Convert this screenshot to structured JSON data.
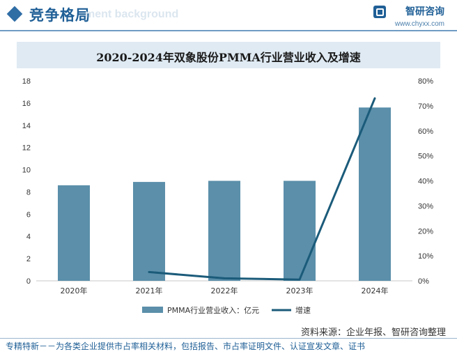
{
  "header": {
    "title": "竞争格局",
    "ghost_text": "ment background"
  },
  "brand": {
    "name": "智研咨询",
    "url": "www.chyxx.com"
  },
  "source": "资料来源：企业年报、智研咨询整理",
  "footer": "专精特新－－为各类企业提供市占率相关材料，包括报告、市占率证明文件、认证宣发文章、证书",
  "colors": {
    "bar": "#5b8faa",
    "line": "#1b5b7a",
    "header": "#1f5f96"
  },
  "chart_data": {
    "type": "bar",
    "title": "2020-2024年双象股份PMMA行业营业收入及增速",
    "categories": [
      "2020年",
      "2021年",
      "2022年",
      "2023年",
      "2024年"
    ],
    "series": [
      {
        "name": "PMMA行业营业收入：亿元",
        "type": "bar",
        "axis": "left",
        "values": [
          8.6,
          8.9,
          9.0,
          9.0,
          15.6
        ]
      },
      {
        "name": "增速",
        "type": "line",
        "axis": "right",
        "values": [
          null,
          3.5,
          1.0,
          0.5,
          73.0
        ]
      }
    ],
    "y_left": {
      "min": 0,
      "max": 18,
      "step": 2,
      "ticks": [
        "0",
        "2",
        "4",
        "6",
        "8",
        "10",
        "12",
        "14",
        "16",
        "18"
      ]
    },
    "y_right": {
      "min": 0,
      "max": 80,
      "step": 10,
      "ticks": [
        "0%",
        "10%",
        "20%",
        "30%",
        "40%",
        "50%",
        "60%",
        "70%",
        "80%"
      ]
    },
    "grid": false,
    "legend_position": "bottom"
  }
}
